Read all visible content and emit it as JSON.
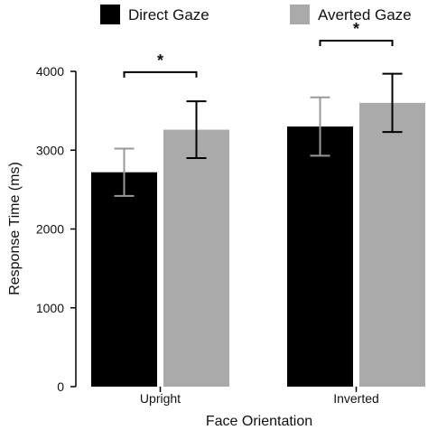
{
  "chart_data": {
    "type": "bar",
    "title": "",
    "xlabel": "Face Orientation",
    "ylabel": "Response Time (ms)",
    "ylim": [
      0,
      4000
    ],
    "yticks": [
      0,
      1000,
      2000,
      3000,
      4000
    ],
    "categories": [
      "Upright",
      "Inverted"
    ],
    "series": [
      {
        "name": "Direct Gaze",
        "color": "#000000",
        "values": [
          2720,
          3300
        ],
        "error": [
          300,
          370
        ]
      },
      {
        "name": "Averted Gaze",
        "color": "#aaaaaa",
        "values": [
          3260,
          3600
        ],
        "error": [
          360,
          370
        ]
      }
    ],
    "error_bar_colors": [
      "#999999",
      "#000000"
    ],
    "legend_position": "top",
    "grid": false,
    "significance": [
      {
        "category_index": 0,
        "label": "*",
        "y": 3990
      },
      {
        "category_index": 1,
        "label": "*",
        "y": 4390
      }
    ]
  }
}
